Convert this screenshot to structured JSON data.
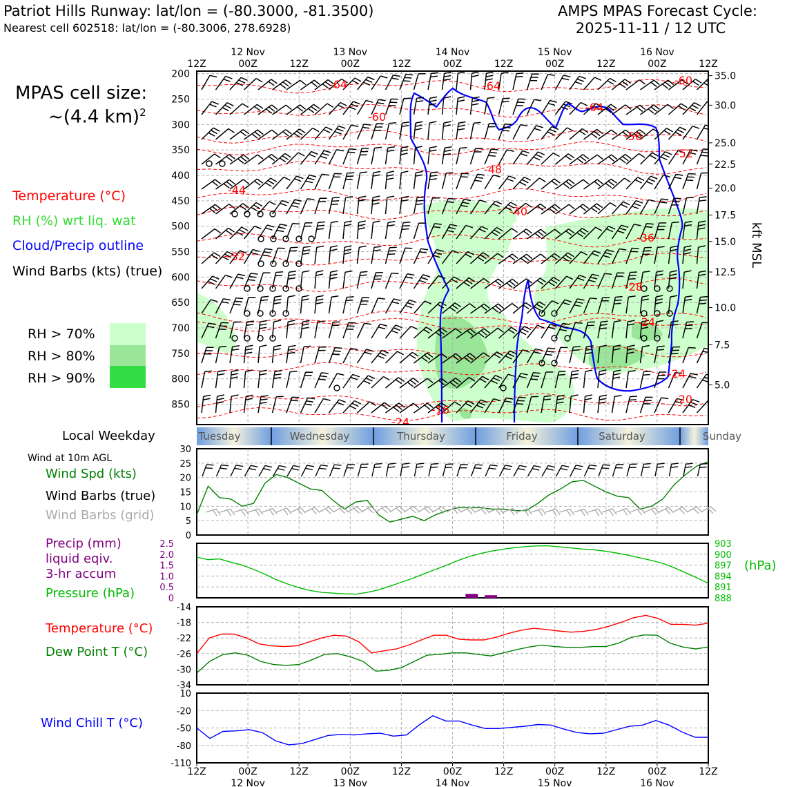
{
  "header": {
    "title_left": "Patriot Hills Runway: lat/lon = (-80.3000, -81.3500)",
    "subtitle_left": "Nearest cell 602518: lat/lon = (-80.3006, 278.6928)",
    "title_right_1": "AMPS MPAS Forecast Cycle:",
    "title_right_2": "2025-11-11 / 12 UTC"
  },
  "cell_size": {
    "line1": "MPAS cell size:",
    "line2": "~(4.4 km)",
    "sup": "2"
  },
  "legend": {
    "temperature": "Temperature (°C)",
    "rh": "RH (%) wrt liq. wat",
    "cloud": "Cloud/Precip outline",
    "barbs": "Wind Barbs (kts) (true)",
    "rh_levels": [
      {
        "label": "RH > 70%",
        "color": "#ccffcc"
      },
      {
        "label": "RH > 80%",
        "color": "#99e699"
      },
      {
        "label": "RH > 90%",
        "color": "#33dd44"
      }
    ]
  },
  "colors": {
    "temperature": "#ff0000",
    "rh": "#33dd33",
    "cloud": "#0000ff",
    "dewpoint": "#008000",
    "windchill": "#0000ff",
    "precip": "#800080",
    "barb_grid": "#aaaaaa"
  },
  "time_axis": {
    "ticks": [
      "12Z",
      "00Z",
      "12Z",
      "00Z",
      "12Z",
      "00Z",
      "12Z",
      "00Z",
      "12Z",
      "00Z",
      "12Z"
    ],
    "dates": [
      "12 Nov",
      "13 Nov",
      "14 Nov",
      "15 Nov",
      "16 Nov"
    ]
  },
  "weekdays": [
    "Tuesday",
    "Wednesday",
    "Thursday",
    "Friday",
    "Saturday",
    "Sunday"
  ],
  "weekday_label": "Local Weekday",
  "panel_labels": {
    "wind_title": "Wind at 10m AGL",
    "wind_spd": "Wind Spd (kts)",
    "wind_barbs": "Wind Barbs (true)",
    "wind_barbs_grid": "Wind Barbs (grid)",
    "precip_1": "Precip (mm)",
    "precip_2": "liquid eqiv.",
    "precip_3": "3-hr accum",
    "pressure": "Pressure (hPa)",
    "pressure_unit": "(hPa)",
    "temp": "Temperature (°C)",
    "dewpoint": "Dew Point T (°C)",
    "windchill": "Wind Chill T (°C)",
    "kft": "kft MSL"
  },
  "chart_data": [
    {
      "type": "heatmap",
      "name_hint": "pressure-time cross section",
      "y_ticks_hpa": [
        "200",
        "250",
        "300",
        "350",
        "400",
        "450",
        "500",
        "550",
        "600",
        "650",
        "700",
        "750",
        "800",
        "850"
      ],
      "y_ticks_kft": [
        "35.0",
        "30.0",
        "25.0",
        "22.5",
        "20.0",
        "17.5",
        "15.0",
        "12.5",
        "10.0",
        "7.5",
        "5.0"
      ],
      "ylim_hpa": [
        890,
        195
      ],
      "temperature_labels": [
        "-64",
        "-64",
        "-60",
        "-60",
        "-64",
        "-56",
        "-52",
        "-48",
        "-44",
        "-40",
        "-36",
        "-32",
        "-28",
        "-24",
        "-24",
        "-20",
        "-16",
        "-24"
      ]
    },
    {
      "type": "line",
      "ylim": [
        0,
        30
      ],
      "yticks": [
        "0",
        "5",
        "10",
        "15",
        "20",
        "25",
        "30"
      ],
      "series": [
        {
          "name": "Wind Spd (kts)",
          "color": "#008000",
          "values": [
            7,
            17,
            13,
            12.5,
            10,
            11,
            18,
            21,
            20,
            18,
            16,
            15.5,
            12,
            9,
            11.5,
            12,
            7,
            4.5,
            5.5,
            6.5,
            5,
            7,
            8.5,
            9.5,
            9.5,
            9.5,
            9,
            9,
            8.5,
            8.5,
            11,
            14,
            16,
            18.5,
            19,
            17,
            15,
            13.5,
            13,
            9,
            10,
            12.5,
            17.5,
            21,
            24,
            25.5
          ]
        }
      ]
    },
    {
      "type": "bar",
      "ylim": [
        0,
        2.5
      ],
      "yticks": [
        "0",
        "0.5",
        "1.0",
        "1.5",
        "2.0",
        "2.5"
      ],
      "series": [
        {
          "name": "Precip (mm)",
          "color": "#800080",
          "x_index": [
            21.5,
            23
          ],
          "values": [
            0.18,
            0.12
          ]
        }
      ]
    },
    {
      "type": "line",
      "ylim": [
        888,
        903
      ],
      "yticks": [
        "888",
        "891",
        "894",
        "897",
        "900",
        "903"
      ],
      "series": [
        {
          "name": "Pressure (hPa)",
          "color": "#00bb00",
          "values": [
            899.2,
            898.5,
            898.7,
            897.8,
            897.0,
            895.8,
            894.5,
            893.0,
            891.8,
            890.8,
            890.0,
            889.5,
            889.3,
            889.1,
            889.0,
            889.5,
            890.2,
            891.2,
            892.3,
            893.4,
            894.6,
            895.8,
            897.0,
            898.3,
            899.4,
            900.2,
            900.9,
            901.4,
            901.8,
            902.1,
            902.3,
            902.3,
            902.0,
            901.7,
            901.4,
            901.2,
            900.8,
            900.3,
            899.7,
            899.0,
            898.3,
            897.5,
            896.3,
            894.9,
            893.5,
            892.0
          ]
        }
      ]
    },
    {
      "type": "line",
      "ylim": [
        -34,
        -14
      ],
      "yticks": [
        "-14",
        "-18",
        "-22",
        "-26",
        "-30",
        "-34"
      ],
      "series": [
        {
          "name": "Temperature (°C)",
          "color": "#ff0000",
          "values": [
            -26,
            -22,
            -21,
            -21,
            -22,
            -23.5,
            -24,
            -24.2,
            -24,
            -23,
            -22,
            -21.3,
            -21.5,
            -23,
            -25.8,
            -25.3,
            -24.8,
            -23.8,
            -22.5,
            -21.3,
            -21.3,
            -22.3,
            -22.5,
            -22.5,
            -21.8,
            -20.8,
            -20,
            -19.5,
            -19.8,
            -20.2,
            -20.5,
            -20.3,
            -19.8,
            -19,
            -18,
            -16.8,
            -16.2,
            -17,
            -18.5,
            -18.5,
            -18.7,
            -18.2
          ]
        },
        {
          "name": "Dew Point T (°C)",
          "color": "#008000",
          "values": [
            -31,
            -28,
            -26.3,
            -25.8,
            -26.4,
            -28,
            -28.8,
            -29,
            -28.8,
            -27.6,
            -26.2,
            -26,
            -26.8,
            -28,
            -30.5,
            -30.3,
            -29.6,
            -28,
            -26.4,
            -26.2,
            -25.8,
            -25.8,
            -26.2,
            -26.6,
            -25.8,
            -25,
            -24.3,
            -23.8,
            -24.2,
            -24.4,
            -24.4,
            -24.2,
            -24.2,
            -23.3,
            -21.8,
            -21.2,
            -21.3,
            -23.3,
            -24.3,
            -24.8,
            -24.3
          ]
        }
      ]
    },
    {
      "type": "line",
      "ylim": [
        -110,
        10
      ],
      "yticks": [
        "10",
        "-20",
        "-50",
        "-80",
        "-110"
      ],
      "series": [
        {
          "name": "Wind Chill T (°C)",
          "color": "#0000ff",
          "values": [
            -50,
            -68,
            -56,
            -55,
            -53,
            -58,
            -72,
            -79,
            -77,
            -70,
            -63,
            -61,
            -62,
            -60,
            -59,
            -64,
            -62,
            -44,
            -29,
            -38,
            -38,
            -45,
            -51,
            -51,
            -49,
            -47,
            -44,
            -45,
            -52,
            -58,
            -60,
            -59,
            -53,
            -47,
            -45,
            -37,
            -45,
            -57,
            -66,
            -66
          ]
        }
      ]
    }
  ]
}
